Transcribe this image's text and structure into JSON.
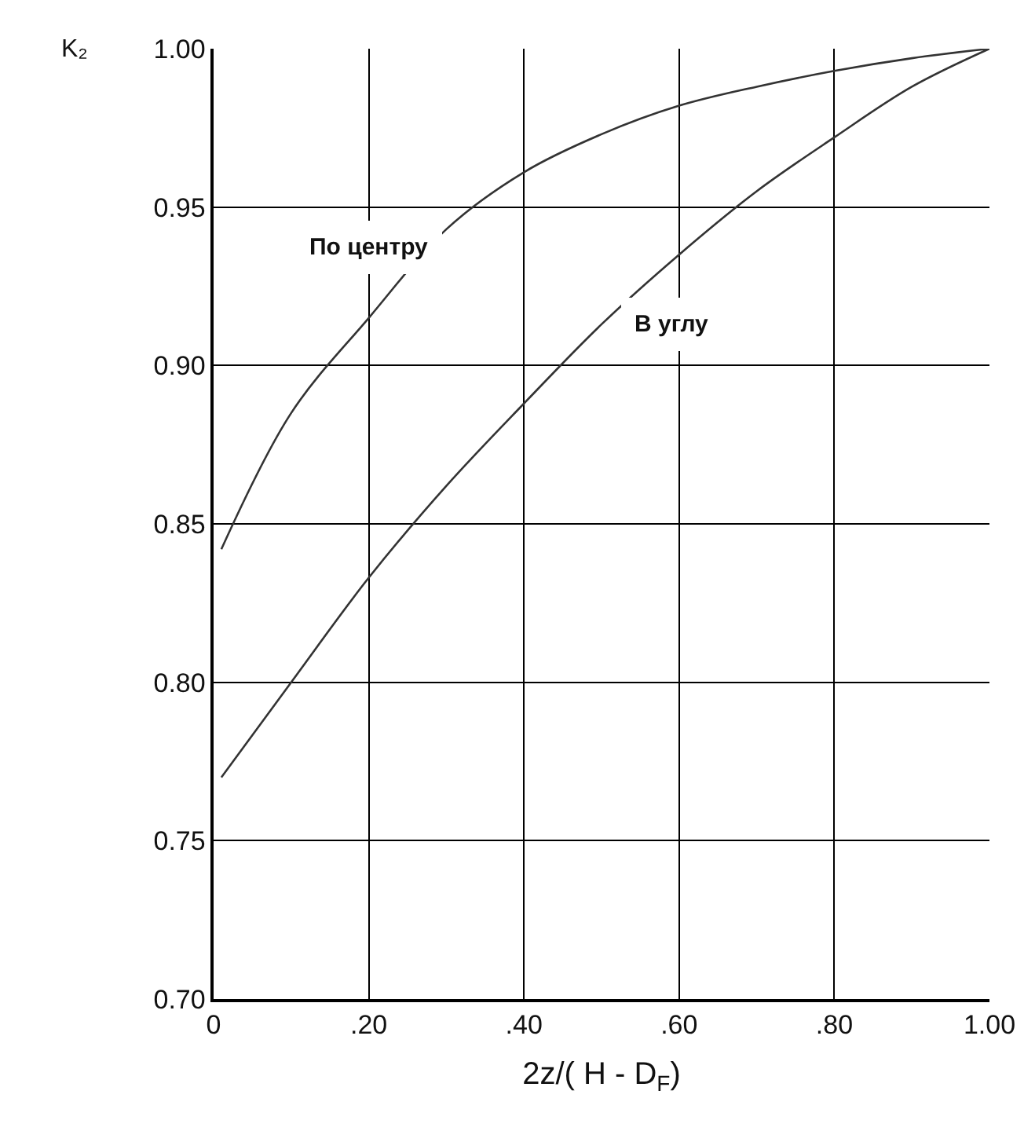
{
  "chart_data": {
    "type": "line",
    "xlabel": "2z/( H - D$_{F}$)",
    "ylabel": "K₂",
    "xlim": [
      0,
      1
    ],
    "ylim": [
      0.7,
      1.0
    ],
    "xticks": [
      {
        "value": 0,
        "label": "0"
      },
      {
        "value": 0.2,
        "label": ".20"
      },
      {
        "value": 0.4,
        "label": ".40"
      },
      {
        "value": 0.6,
        "label": ".60"
      },
      {
        "value": 0.8,
        "label": ".80"
      },
      {
        "value": 1.0,
        "label": "1.00"
      }
    ],
    "yticks": [
      {
        "value": 0.7,
        "label": "0.70"
      },
      {
        "value": 0.75,
        "label": "0.75"
      },
      {
        "value": 0.8,
        "label": "0.80"
      },
      {
        "value": 0.85,
        "label": "0.85"
      },
      {
        "value": 0.9,
        "label": "0.90"
      },
      {
        "value": 0.95,
        "label": "0.95"
      },
      {
        "value": 1.0,
        "label": "1.00"
      }
    ],
    "grid": true,
    "legend": false,
    "marker": "none",
    "line_style": "solid",
    "x": [
      0.01,
      0.1,
      0.2,
      0.3,
      0.4,
      0.5,
      0.6,
      0.7,
      0.8,
      0.9,
      1.0
    ],
    "series": [
      {
        "name": "По центру",
        "color": "#333333",
        "values": [
          0.842,
          0.885,
          0.915,
          0.943,
          0.961,
          0.973,
          0.982,
          0.988,
          0.993,
          0.997,
          1.0
        ]
      },
      {
        "name": "В углу",
        "color": "#333333",
        "values": [
          0.77,
          0.8,
          0.833,
          0.862,
          0.888,
          0.913,
          0.935,
          0.955,
          0.972,
          0.988,
          1.0
        ]
      }
    ]
  }
}
